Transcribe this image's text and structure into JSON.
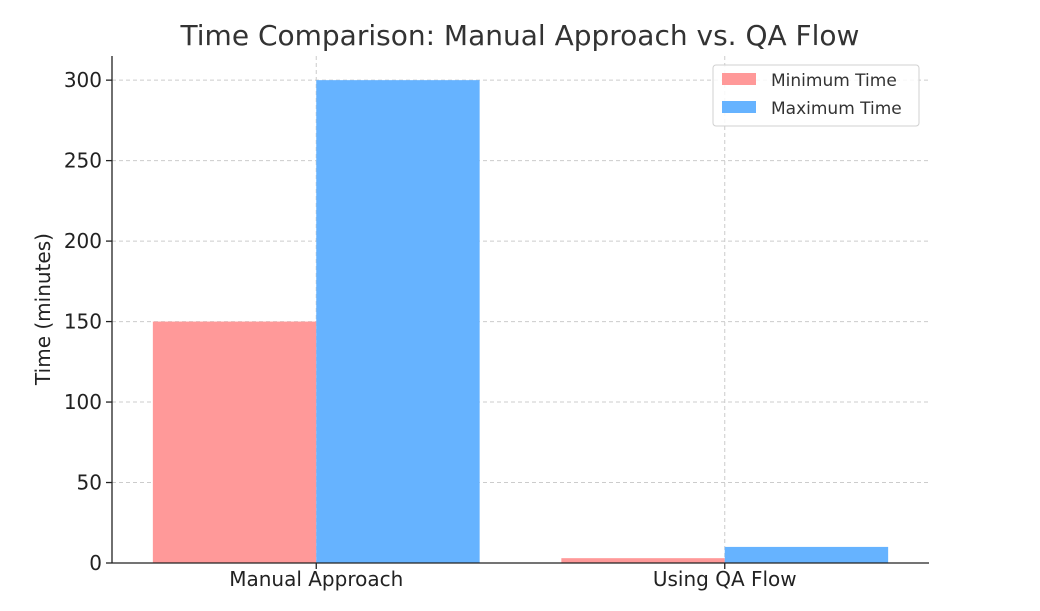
{
  "chart_data": {
    "type": "bar",
    "title": "Time Comparison: Manual Approach vs. QA Flow",
    "xlabel": "",
    "ylabel": "Time (minutes)",
    "categories": [
      "Manual Approach",
      "Using QA Flow"
    ],
    "series": [
      {
        "name": "Minimum Time",
        "values": [
          150,
          3
        ],
        "color": "#ff9999"
      },
      {
        "name": "Maximum Time",
        "values": [
          300,
          10
        ],
        "color": "#66b3ff"
      }
    ],
    "ylim": [
      0,
      315
    ],
    "yticks": [
      0,
      50,
      100,
      150,
      200,
      250,
      300
    ],
    "grid": true,
    "legend": {
      "position": "top-right"
    }
  }
}
